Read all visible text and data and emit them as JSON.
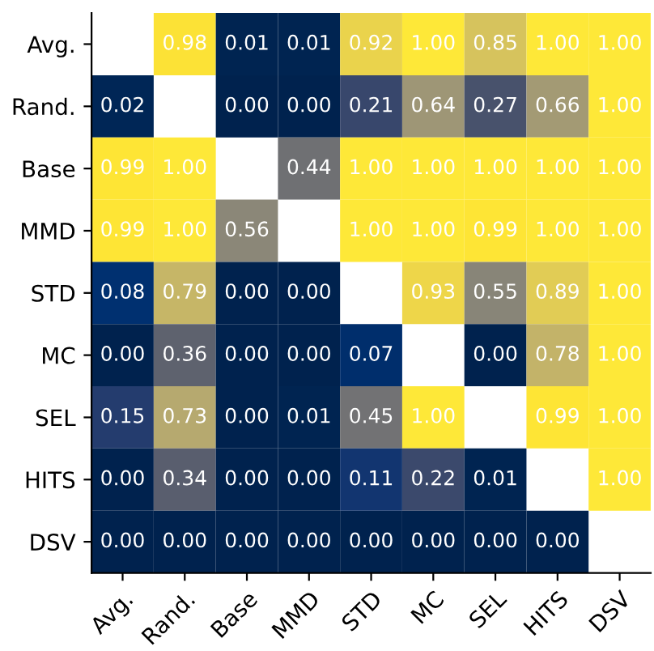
{
  "chart_data": {
    "type": "heatmap",
    "categories": [
      "Avg.",
      "Rand.",
      "Base",
      "MMD",
      "STD",
      "MC",
      "SEL",
      "HITS",
      "DSV"
    ],
    "y_categories": [
      "Avg.",
      "Rand.",
      "Base",
      "MMD",
      "STD",
      "MC",
      "SEL",
      "HITS",
      "DSV"
    ],
    "cells": [
      [
        null,
        0.98,
        0.01,
        0.01,
        0.92,
        1.0,
        0.85,
        1.0,
        1.0
      ],
      [
        0.02,
        null,
        0.0,
        0.0,
        0.21,
        0.64,
        0.27,
        0.66,
        1.0
      ],
      [
        0.99,
        1.0,
        null,
        0.44,
        1.0,
        1.0,
        1.0,
        1.0,
        1.0
      ],
      [
        0.99,
        1.0,
        0.56,
        null,
        1.0,
        1.0,
        0.99,
        1.0,
        1.0
      ],
      [
        0.08,
        0.79,
        0.0,
        0.0,
        null,
        0.93,
        0.55,
        0.89,
        1.0
      ],
      [
        0.0,
        0.36,
        0.0,
        0.0,
        0.07,
        null,
        0.0,
        0.78,
        1.0
      ],
      [
        0.15,
        0.73,
        0.0,
        0.01,
        0.45,
        1.0,
        null,
        0.99,
        1.0
      ],
      [
        0.0,
        0.34,
        0.0,
        0.0,
        0.11,
        0.22,
        0.01,
        null,
        1.0
      ],
      [
        0.0,
        0.0,
        0.0,
        0.0,
        0.0,
        0.0,
        0.0,
        0.0,
        null
      ]
    ],
    "cell_labels": [
      [
        null,
        "0.98",
        "0.01",
        "0.01",
        "0.92",
        "1.00",
        "0.85",
        "1.00",
        "1.00"
      ],
      [
        "0.02",
        null,
        "0.00",
        "0.00",
        "0.21",
        "0.64",
        "0.27",
        "0.66",
        "1.00"
      ],
      [
        "0.99",
        "1.00",
        null,
        "0.44",
        "1.00",
        "1.00",
        "1.00",
        "1.00",
        "1.00"
      ],
      [
        "0.99",
        "1.00",
        "0.56",
        null,
        "1.00",
        "1.00",
        "0.99",
        "1.00",
        "1.00"
      ],
      [
        "0.08",
        "0.79",
        "0.00",
        "0.00",
        null,
        "0.93",
        "0.55",
        "0.89",
        "1.00"
      ],
      [
        "0.00",
        "0.36",
        "0.00",
        "0.00",
        "0.07",
        null,
        "0.00",
        "0.78",
        "1.00"
      ],
      [
        "0.15",
        "0.73",
        "0.00",
        "0.01",
        "0.45",
        "1.00",
        null,
        "0.99",
        "1.00"
      ],
      [
        "0.00",
        "0.34",
        "0.00",
        "0.00",
        "0.11",
        "0.22",
        "0.01",
        null,
        "1.00"
      ],
      [
        "0.00",
        "0.00",
        "0.00",
        "0.00",
        "0.00",
        "0.00",
        "0.00",
        "0.00",
        null
      ]
    ]
  }
}
